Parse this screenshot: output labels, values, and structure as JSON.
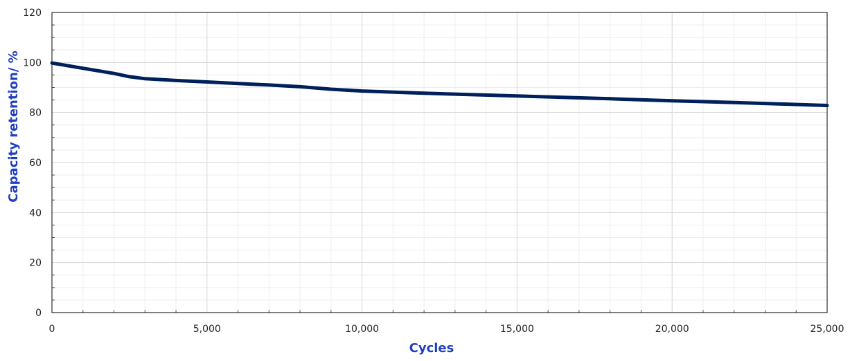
{
  "chart_data": {
    "type": "line",
    "title": "",
    "xlabel": "Cycles",
    "ylabel": "Capacity retention/ %",
    "xlim": [
      0,
      25000
    ],
    "ylim": [
      0,
      120
    ],
    "x_ticks": [
      0,
      5000,
      10000,
      15000,
      20000,
      25000
    ],
    "x_tick_labels": [
      "0",
      "5,000",
      "10,000",
      "15,000",
      "20,000",
      "25,000"
    ],
    "y_ticks": [
      0,
      20,
      40,
      60,
      80,
      100,
      120
    ],
    "y_tick_labels": [
      "0",
      "20",
      "40",
      "60",
      "80",
      "100",
      "120"
    ],
    "grid": true,
    "legend": "none",
    "series": [
      {
        "x": [
          0,
          1000,
          2000,
          2500,
          3000,
          4000,
          5000,
          6000,
          7000,
          8000,
          9000,
          10000,
          12000,
          15000,
          18000,
          20000,
          22000,
          25000
        ],
        "y": [
          99.8,
          97.7,
          95.6,
          94.3,
          93.5,
          92.8,
          92.2,
          91.6,
          91.0,
          90.3,
          89.3,
          88.6,
          87.7,
          86.6,
          85.5,
          84.7,
          84.0,
          82.8
        ]
      }
    ],
    "colors": {
      "line": "#00205b",
      "axis_title": "#1f3fbf",
      "major_grid": "#d6d6d6",
      "minor_grid": "#ededed",
      "frame": "#000000"
    }
  }
}
